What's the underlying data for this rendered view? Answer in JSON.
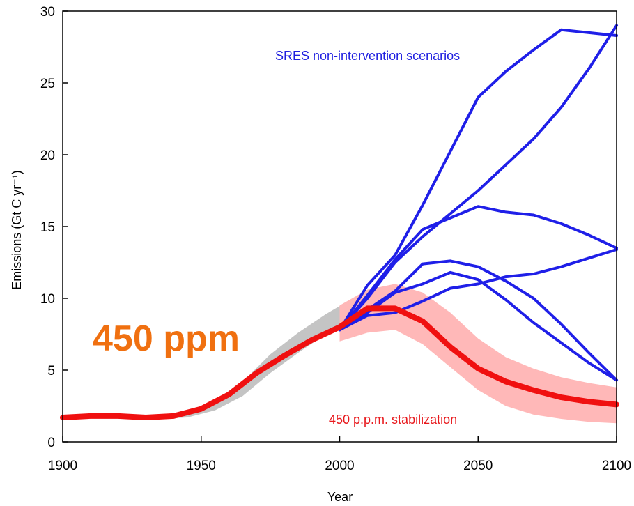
{
  "chart_data": {
    "type": "line",
    "xlabel": "Year",
    "ylabel": "Emissions (Gt C yr⁻¹)",
    "xlim": [
      1900,
      2100
    ],
    "ylim": [
      0,
      30
    ],
    "xticks": [
      1900,
      1950,
      2000,
      2050,
      2100
    ],
    "yticks": [
      0,
      5,
      10,
      15,
      20,
      25,
      30
    ],
    "grid": false,
    "annotations": {
      "sres": "SRES non-intervention scenarios",
      "stabilization": "450 p.p.m. stabilization",
      "big": "450 ppm"
    },
    "colors": {
      "sres": "#1f1fe8",
      "stabilization": "#f01010",
      "band": "#ffb8b8",
      "historical_band": "#c4c4c4",
      "big": "#f07010"
    },
    "historical_band": {
      "x": [
        1935,
        1945,
        1955,
        1965,
        1975,
        1985,
        1995,
        2003
      ],
      "upper": [
        1.9,
        2.1,
        2.8,
        4.2,
        6.1,
        7.6,
        8.9,
        9.8
      ],
      "lower": [
        1.6,
        1.7,
        2.2,
        3.2,
        4.8,
        6.2,
        7.5,
        8.0
      ]
    },
    "stabilization_band": {
      "x": [
        2000,
        2010,
        2020,
        2030,
        2040,
        2050,
        2060,
        2070,
        2080,
        2090,
        2100
      ],
      "upper": [
        9.5,
        10.6,
        11.0,
        10.4,
        9.0,
        7.2,
        5.9,
        5.1,
        4.5,
        4.1,
        3.8
      ],
      "lower": [
        7.0,
        7.6,
        7.8,
        6.8,
        5.2,
        3.6,
        2.5,
        1.9,
        1.6,
        1.4,
        1.3
      ]
    },
    "stabilization": {
      "x": [
        1900,
        1910,
        1920,
        1930,
        1940,
        1950,
        1960,
        1970,
        1980,
        1990,
        2000,
        2010,
        2020,
        2030,
        2040,
        2050,
        2060,
        2070,
        2080,
        2090,
        2100
      ],
      "y": [
        1.7,
        1.8,
        1.8,
        1.7,
        1.8,
        2.3,
        3.3,
        4.8,
        6.0,
        7.1,
        8.0,
        9.3,
        9.3,
        8.4,
        6.6,
        5.1,
        4.2,
        3.6,
        3.1,
        2.8,
        2.6
      ]
    },
    "series": [
      {
        "x": [
          2000,
          2010,
          2020,
          2030,
          2050,
          2060,
          2070,
          2080,
          2090,
          2100
        ],
        "y": [
          7.8,
          10.9,
          13.0,
          16.5,
          24.0,
          25.8,
          27.3,
          28.7,
          28.5,
          28.3
        ]
      },
      {
        "x": [
          2000,
          2010,
          2020,
          2030,
          2040,
          2050,
          2060,
          2070,
          2080,
          2090,
          2100
        ],
        "y": [
          7.8,
          10.0,
          12.5,
          14.3,
          15.9,
          17.5,
          19.3,
          21.1,
          23.3,
          26.0,
          29.0
        ]
      },
      {
        "x": [
          2000,
          2010,
          2020,
          2030,
          2040,
          2050,
          2060,
          2070,
          2080,
          2090,
          2100
        ],
        "y": [
          7.8,
          10.2,
          12.7,
          14.8,
          15.6,
          16.4,
          16.0,
          15.8,
          15.2,
          14.4,
          13.5
        ]
      },
      {
        "x": [
          2000,
          2010,
          2020,
          2030,
          2040,
          2050,
          2060,
          2070,
          2080,
          2090,
          2100
        ],
        "y": [
          7.8,
          9.2,
          10.5,
          12.4,
          12.6,
          12.2,
          11.2,
          10.0,
          8.2,
          6.2,
          4.3
        ]
      },
      {
        "x": [
          2000,
          2010,
          2020,
          2030,
          2040,
          2050,
          2060,
          2070,
          2080,
          2090,
          2100
        ],
        "y": [
          7.8,
          9.0,
          10.4,
          11.0,
          11.8,
          11.3,
          9.9,
          8.3,
          6.9,
          5.5,
          4.3
        ]
      },
      {
        "x": [
          2000,
          2010,
          2020,
          2030,
          2040,
          2050,
          2060,
          2070,
          2080,
          2090,
          2100
        ],
        "y": [
          7.8,
          8.8,
          9.0,
          9.8,
          10.7,
          11.0,
          11.5,
          11.7,
          12.2,
          12.8,
          13.4
        ]
      }
    ]
  }
}
